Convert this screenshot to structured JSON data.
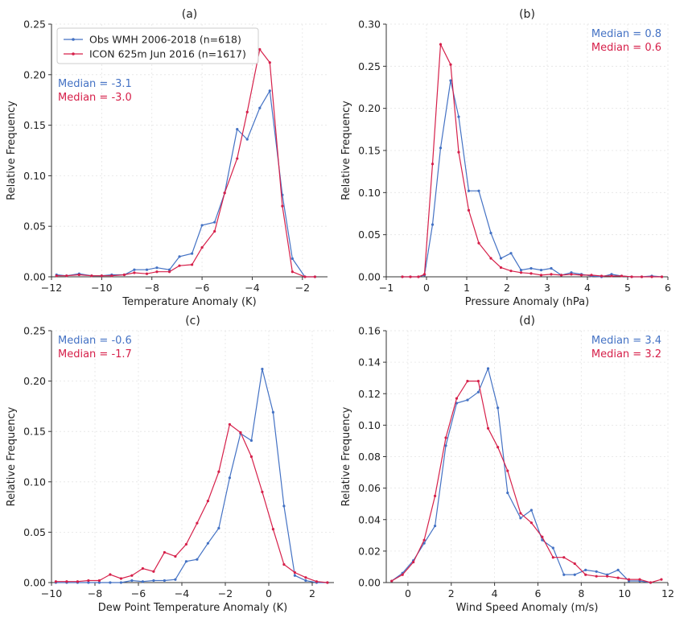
{
  "colors": {
    "obs": "#4472c4",
    "icon": "#d6204a",
    "grid": "#e4e4e4",
    "axis": "#333333"
  },
  "legend": {
    "entries": [
      {
        "series": "obs",
        "label": "Obs WMH 2006-2018 (n=618)"
      },
      {
        "series": "icon",
        "label": "ICON 625m Jun 2016 (n=1617)"
      }
    ]
  },
  "chart_data": [
    {
      "type": "line",
      "title": "(a)",
      "xlabel": "Temperature Anomaly (K)",
      "ylabel": "Relative Frequency",
      "xlim": [
        -12,
        -1
      ],
      "ylim": [
        0,
        0.25
      ],
      "xticks": [
        -12,
        -10,
        -8,
        -6,
        -4,
        -2
      ],
      "yticks": [
        0.0,
        0.05,
        0.1,
        0.15,
        0.2,
        0.25
      ],
      "ytick_labels": [
        "0.00",
        "0.05",
        "0.10",
        "0.15",
        "0.20",
        "0.25"
      ],
      "grid": true,
      "medians": [
        {
          "series": "obs",
          "text": "Median = -3.1"
        },
        {
          "series": "icon",
          "text": "Median = -3.0"
        }
      ],
      "median_position": "top-left",
      "series": [
        {
          "name": "Obs WMH 2006-2018 (n=618)",
          "key": "obs",
          "x": [
            -11.8,
            -11.4,
            -10.9,
            -10.4,
            -10.0,
            -9.6,
            -9.1,
            -8.7,
            -8.2,
            -7.8,
            -7.3,
            -6.9,
            -6.4,
            -6.0,
            -5.5,
            -5.1,
            -4.6,
            -4.2,
            -3.7,
            -3.3,
            -2.8,
            -2.4,
            -1.9,
            -1.5
          ],
          "y": [
            0.002,
            0.001,
            0.003,
            0.001,
            0.001,
            0.002,
            0.002,
            0.007,
            0.007,
            0.009,
            0.007,
            0.02,
            0.023,
            0.051,
            0.054,
            0.083,
            0.146,
            0.136,
            0.167,
            0.184,
            0.081,
            0.018,
            0.0,
            0.0
          ]
        },
        {
          "name": "ICON 625m Jun 2016 (n=1617)",
          "key": "icon",
          "x": [
            -11.8,
            -11.4,
            -10.9,
            -10.4,
            -10.0,
            -9.6,
            -9.1,
            -8.7,
            -8.2,
            -7.8,
            -7.3,
            -6.9,
            -6.4,
            -6.0,
            -5.5,
            -5.1,
            -4.6,
            -4.2,
            -3.7,
            -3.3,
            -2.8,
            -2.4,
            -1.9,
            -1.5
          ],
          "y": [
            0.001,
            0.001,
            0.002,
            0.001,
            0.001,
            0.001,
            0.002,
            0.004,
            0.003,
            0.005,
            0.005,
            0.011,
            0.012,
            0.029,
            0.045,
            0.083,
            0.117,
            0.163,
            0.225,
            0.212,
            0.07,
            0.005,
            0.0,
            0.0
          ]
        }
      ]
    },
    {
      "type": "line",
      "title": "(b)",
      "xlabel": "Pressure Anomaly (hPa)",
      "ylabel": "Relative Frequency",
      "xlim": [
        -1,
        6
      ],
      "ylim": [
        0,
        0.3
      ],
      "xticks": [
        -1,
        0,
        1,
        2,
        3,
        4,
        5,
        6
      ],
      "yticks": [
        0.0,
        0.05,
        0.1,
        0.15,
        0.2,
        0.25,
        0.3
      ],
      "ytick_labels": [
        "0.00",
        "0.05",
        "0.10",
        "0.15",
        "0.20",
        "0.25",
        "0.30"
      ],
      "grid": true,
      "medians": [
        {
          "series": "obs",
          "text": "Median =  0.8"
        },
        {
          "series": "icon",
          "text": "Median =  0.6"
        }
      ],
      "median_position": "top-right",
      "series": [
        {
          "name": "Obs WMH 2006-2018 (n=618)",
          "key": "obs",
          "x": [
            -0.6,
            -0.4,
            -0.2,
            -0.05,
            0.15,
            0.35,
            0.6,
            0.8,
            1.05,
            1.3,
            1.6,
            1.85,
            2.1,
            2.35,
            2.6,
            2.85,
            3.1,
            3.35,
            3.6,
            3.85,
            4.1,
            4.35,
            4.6,
            4.85,
            5.1,
            5.35,
            5.6,
            5.85
          ],
          "y": [
            0.0,
            0.0,
            0.0,
            0.002,
            0.062,
            0.153,
            0.233,
            0.19,
            0.102,
            0.102,
            0.052,
            0.022,
            0.028,
            0.008,
            0.01,
            0.008,
            0.01,
            0.002,
            0.005,
            0.003,
            0.001,
            0.0,
            0.003,
            0.001,
            0.0,
            0.0,
            0.001,
            0.0
          ]
        },
        {
          "name": "ICON 625m Jun 2016 (n=1617)",
          "key": "icon",
          "x": [
            -0.6,
            -0.4,
            -0.2,
            -0.05,
            0.15,
            0.35,
            0.6,
            0.8,
            1.05,
            1.3,
            1.6,
            1.85,
            2.1,
            2.35,
            2.6,
            2.85,
            3.1,
            3.35,
            3.6,
            3.85,
            4.1,
            4.35,
            4.6,
            4.85,
            5.1,
            5.35,
            5.6,
            5.85
          ],
          "y": [
            0.0,
            0.0,
            0.0,
            0.003,
            0.134,
            0.276,
            0.252,
            0.148,
            0.079,
            0.04,
            0.022,
            0.011,
            0.007,
            0.005,
            0.004,
            0.002,
            0.003,
            0.002,
            0.003,
            0.002,
            0.002,
            0.001,
            0.001,
            0.001,
            0.0,
            0.0,
            0.0,
            0.0
          ]
        }
      ]
    },
    {
      "type": "line",
      "title": "(c)",
      "xlabel": "Dew Point Temperature Anomaly (K)",
      "ylabel": "Relative Frequency",
      "xlim": [
        -10,
        3
      ],
      "ylim": [
        0,
        0.25
      ],
      "xticks": [
        -10,
        -8,
        -6,
        -4,
        -2,
        0,
        2
      ],
      "yticks": [
        0.0,
        0.05,
        0.1,
        0.15,
        0.2,
        0.25
      ],
      "ytick_labels": [
        "0.00",
        "0.05",
        "0.10",
        "0.15",
        "0.20",
        "0.25"
      ],
      "grid": true,
      "medians": [
        {
          "series": "obs",
          "text": "Median = -0.6"
        },
        {
          "series": "icon",
          "text": "Median = -1.7"
        }
      ],
      "median_position": "top-left",
      "series": [
        {
          "name": "Obs WMH 2006-2018 (n=618)",
          "key": "obs",
          "x": [
            -9.8,
            -9.3,
            -8.8,
            -8.3,
            -7.8,
            -7.3,
            -6.8,
            -6.3,
            -5.8,
            -5.3,
            -4.8,
            -4.3,
            -3.8,
            -3.3,
            -2.8,
            -2.3,
            -1.8,
            -1.3,
            -0.8,
            -0.3,
            0.2,
            0.7,
            1.2,
            1.7,
            2.2,
            2.7
          ],
          "y": [
            0.0,
            0.0,
            0.0,
            0.0,
            0.0,
            0.0,
            0.0,
            0.002,
            0.001,
            0.002,
            0.002,
            0.003,
            0.021,
            0.023,
            0.039,
            0.054,
            0.104,
            0.148,
            0.141,
            0.212,
            0.169,
            0.076,
            0.007,
            0.002,
            0.0,
            0.0
          ]
        },
        {
          "name": "ICON 625m Jun 2016 (n=1617)",
          "key": "icon",
          "x": [
            -9.8,
            -9.3,
            -8.8,
            -8.3,
            -7.8,
            -7.3,
            -6.8,
            -6.3,
            -5.8,
            -5.3,
            -4.8,
            -4.3,
            -3.8,
            -3.3,
            -2.8,
            -2.3,
            -1.8,
            -1.3,
            -0.8,
            -0.3,
            0.2,
            0.7,
            1.2,
            1.7,
            2.2,
            2.7
          ],
          "y": [
            0.001,
            0.001,
            0.001,
            0.002,
            0.002,
            0.008,
            0.004,
            0.007,
            0.014,
            0.011,
            0.03,
            0.026,
            0.038,
            0.059,
            0.081,
            0.11,
            0.157,
            0.149,
            0.125,
            0.09,
            0.053,
            0.018,
            0.01,
            0.005,
            0.001,
            0.0
          ]
        }
      ]
    },
    {
      "type": "line",
      "title": "(d)",
      "xlabel": "Wind Speed Anomaly (m/s)",
      "ylabel": "Relative Frequency",
      "xlim": [
        -1,
        12
      ],
      "ylim": [
        0,
        0.16
      ],
      "xticks": [
        0,
        2,
        4,
        6,
        8,
        10,
        12
      ],
      "yticks": [
        0.0,
        0.02,
        0.04,
        0.06,
        0.08,
        0.1,
        0.12,
        0.14,
        0.16
      ],
      "ytick_labels": [
        "0.00",
        "0.02",
        "0.04",
        "0.06",
        "0.08",
        "0.10",
        "0.12",
        "0.14",
        "0.16"
      ],
      "grid": true,
      "medians": [
        {
          "series": "obs",
          "text": "Median =  3.4"
        },
        {
          "series": "icon",
          "text": "Median =  3.2"
        }
      ],
      "median_position": "top-right",
      "series": [
        {
          "name": "Obs WMH 2006-2018 (n=618)",
          "key": "obs",
          "x": [
            -0.75,
            -0.25,
            0.25,
            0.75,
            1.25,
            1.75,
            2.25,
            2.75,
            3.25,
            3.7,
            4.15,
            4.6,
            5.2,
            5.7,
            6.2,
            6.7,
            7.2,
            7.7,
            8.2,
            8.7,
            9.2,
            9.7,
            10.2,
            10.7,
            11.2
          ],
          "y": [
            0.001,
            0.006,
            0.014,
            0.025,
            0.036,
            0.087,
            0.114,
            0.116,
            0.121,
            0.136,
            0.111,
            0.057,
            0.041,
            0.046,
            0.027,
            0.022,
            0.005,
            0.005,
            0.008,
            0.007,
            0.005,
            0.008,
            0.001,
            0.001,
            0.0
          ]
        },
        {
          "name": "ICON 625m Jun 2016 (n=1617)",
          "key": "icon",
          "x": [
            -0.75,
            -0.25,
            0.25,
            0.75,
            1.25,
            1.75,
            2.25,
            2.75,
            3.25,
            3.7,
            4.15,
            4.6,
            5.2,
            5.7,
            6.2,
            6.7,
            7.2,
            7.7,
            8.2,
            8.7,
            9.2,
            9.7,
            10.2,
            10.7,
            11.2,
            11.7
          ],
          "y": [
            0.001,
            0.005,
            0.013,
            0.027,
            0.055,
            0.092,
            0.117,
            0.128,
            0.128,
            0.098,
            0.086,
            0.071,
            0.044,
            0.038,
            0.029,
            0.016,
            0.016,
            0.012,
            0.005,
            0.004,
            0.004,
            0.003,
            0.002,
            0.002,
            0.0,
            0.002
          ]
        }
      ]
    }
  ]
}
